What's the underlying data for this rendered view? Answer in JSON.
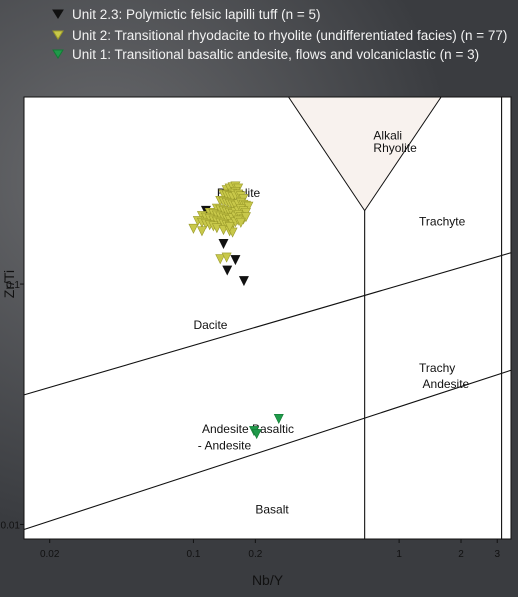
{
  "legend": [
    {
      "label": "Unit 2.3: Polymictic felsic lapilli tuff (n = 5)",
      "color": "#111111",
      "stroke": "#111111"
    },
    {
      "label": "Unit 2: Transitional rhyodacite to rhyolite (undifferentiated facies) (n = 77)",
      "color": "#c8c84a",
      "stroke": "#9a9a2a"
    },
    {
      "label": "Unit 1: Transitional basaltic andesite, flows and volcaniclastic (n = 3)",
      "color": "#1f9a4a",
      "stroke": "#137a35"
    }
  ],
  "chart_data": {
    "type": "scatter",
    "xlabel": "Nb/Y",
    "ylabel": "Zr/Ti",
    "xscale": "log",
    "yscale": "log",
    "xlim": [
      0.015,
      3.5
    ],
    "ylim": [
      0.0087,
      0.6
    ],
    "x_ticks": [
      {
        "value": 0.02,
        "label": "0.02"
      },
      {
        "value": 0.1,
        "label": "0.1"
      },
      {
        "value": 0.2,
        "label": "0.2"
      },
      {
        "value": 1,
        "label": "1"
      },
      {
        "value": 2,
        "label": "2"
      },
      {
        "value": 3,
        "label": "3"
      }
    ],
    "y_ticks": [
      {
        "value": 0.01,
        "label": "0.01"
      },
      {
        "value": 0.1,
        "label": "0.1"
      }
    ],
    "region_labels": [
      {
        "text": "Rhyolite",
        "x": 0.13,
        "y": 0.23
      },
      {
        "text": "Alkali",
        "x": 0.75,
        "y": 0.4
      },
      {
        "text": "Rhyolite",
        "x": 0.75,
        "y": 0.355
      },
      {
        "text": "Trachyte",
        "x": 1.25,
        "y": 0.175
      },
      {
        "text": "Dacite",
        "x": 0.1,
        "y": 0.065
      },
      {
        "text": "Trachy",
        "x": 1.25,
        "y": 0.043
      },
      {
        "text": "Andesite",
        "x": 1.3,
        "y": 0.037
      },
      {
        "text": "Andesite Basaltic",
        "x": 0.11,
        "y": 0.024
      },
      {
        "text": "- Andesite",
        "x": 0.105,
        "y": 0.0205
      },
      {
        "text": "Basalt",
        "x": 0.2,
        "y": 0.0111
      }
    ],
    "boundaries": [
      {
        "points": [
          [
            0.015,
            0.0346
          ],
          [
            3.5,
            0.135
          ]
        ]
      },
      {
        "points": [
          [
            0.015,
            0.00953
          ],
          [
            3.5,
            0.0438
          ]
        ]
      },
      {
        "points": [
          [
            0.68,
            0.0087
          ],
          [
            0.68,
            0.202
          ]
        ]
      },
      {
        "points": [
          [
            3.15,
            0.0087
          ],
          [
            3.15,
            0.6
          ]
        ]
      }
    ],
    "alkali_triangle": {
      "points": [
        [
          0.29,
          0.6
        ],
        [
          1.6,
          0.6
        ],
        [
          0.68,
          0.202
        ]
      ],
      "fill": "#f8f2ee"
    },
    "series": [
      {
        "name": "Unit 2.3: Polymictic felsic lapilli tuff (n = 5)",
        "color": "#111111",
        "x": [
          0.115,
          0.14,
          0.16,
          0.146,
          0.176
        ],
        "y": [
          0.202,
          0.147,
          0.126,
          0.114,
          0.103
        ]
      },
      {
        "name": "Unit 2: Transitional rhyodacite to rhyolite (undifferentiated facies) (n = 77)",
        "color": "#c8c84a",
        "x": [
          0.145,
          0.15,
          0.155,
          0.16,
          0.165,
          0.16,
          0.155,
          0.14,
          0.145,
          0.15,
          0.155,
          0.16,
          0.165,
          0.17,
          0.175,
          0.135,
          0.14,
          0.145,
          0.15,
          0.155,
          0.16,
          0.165,
          0.17,
          0.175,
          0.18,
          0.185,
          0.13,
          0.135,
          0.14,
          0.145,
          0.15,
          0.155,
          0.16,
          0.165,
          0.17,
          0.175,
          0.18,
          0.12,
          0.125,
          0.13,
          0.135,
          0.14,
          0.145,
          0.15,
          0.155,
          0.16,
          0.165,
          0.17,
          0.175,
          0.18,
          0.11,
          0.115,
          0.12,
          0.125,
          0.13,
          0.135,
          0.14,
          0.145,
          0.15,
          0.155,
          0.16,
          0.165,
          0.17,
          0.105,
          0.11,
          0.115,
          0.12,
          0.125,
          0.13,
          0.14,
          0.15,
          0.155,
          0.1,
          0.11,
          0.15,
          0.135,
          0.145
        ],
        "y": [
          0.246,
          0.25,
          0.253,
          0.255,
          0.25,
          0.242,
          0.238,
          0.236,
          0.234,
          0.232,
          0.23,
          0.233,
          0.236,
          0.232,
          0.226,
          0.222,
          0.22,
          0.218,
          0.216,
          0.214,
          0.212,
          0.215,
          0.218,
          0.214,
          0.212,
          0.21,
          0.206,
          0.204,
          0.202,
          0.2,
          0.198,
          0.196,
          0.199,
          0.202,
          0.205,
          0.201,
          0.198,
          0.198,
          0.196,
          0.193,
          0.191,
          0.189,
          0.187,
          0.185,
          0.188,
          0.191,
          0.194,
          0.19,
          0.186,
          0.19,
          0.192,
          0.189,
          0.187,
          0.184,
          0.182,
          0.18,
          0.178,
          0.176,
          0.174,
          0.178,
          0.181,
          0.184,
          0.18,
          0.183,
          0.18,
          0.178,
          0.176,
          0.174,
          0.171,
          0.168,
          0.166,
          0.164,
          0.17,
          0.166,
          0.173,
          0.127,
          0.129
        ]
      },
      {
        "name": "Unit 1: Transitional basaltic andesite, flows and volcaniclastic (n = 3)",
        "color": "#1f9a4a",
        "x": [
          0.197,
          0.203,
          0.26
        ],
        "y": [
          0.0245,
          0.0238,
          0.0275
        ]
      }
    ]
  }
}
